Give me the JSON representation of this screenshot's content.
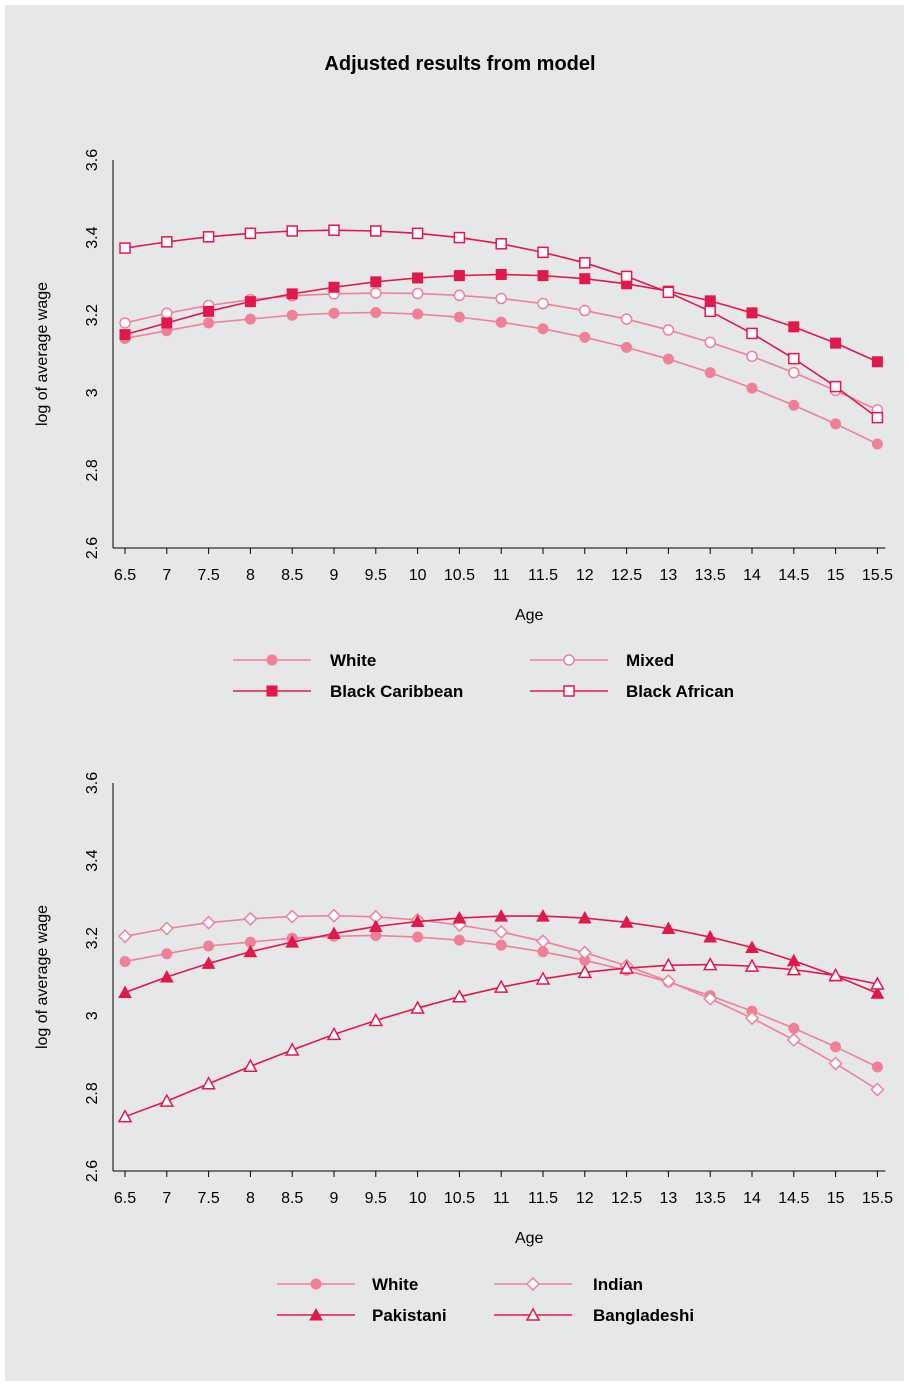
{
  "title": "Adjusted results from model",
  "colors": {
    "light": "#f08098",
    "dark": "#e3174b",
    "background": "#e6e7e8"
  },
  "chart_data": [
    {
      "type": "line",
      "xlabel": "Age",
      "ylabel": "log of average wage",
      "x": [
        6.5,
        7,
        7.5,
        8,
        8.5,
        9,
        9.5,
        10,
        10.5,
        11,
        11.5,
        12,
        12.5,
        13,
        13.5,
        14,
        14.5,
        15,
        15.5
      ],
      "x_tick_labels": [
        "6.5",
        "7",
        "7.5",
        "8",
        "8.5",
        "9",
        "9.5",
        "10",
        "10.5",
        "11",
        "11.5",
        "12",
        "12.5",
        "13",
        "13.5",
        "14",
        "14.5",
        "15",
        "15.5"
      ],
      "ylim": [
        2.6,
        3.6
      ],
      "y_ticks": [
        2.6,
        2.8,
        3,
        3.2,
        3.4,
        3.6
      ],
      "y_tick_labels": [
        "2.6",
        "2.8",
        "3",
        "3.2",
        "3.4",
        "3.6"
      ],
      "legend_position": "bottom",
      "series": [
        {
          "name": "White",
          "color": "light",
          "marker": "circle-filled",
          "values": [
            3.14,
            3.16,
            3.18,
            3.19,
            3.2,
            3.205,
            3.207,
            3.203,
            3.195,
            3.182,
            3.165,
            3.143,
            3.117,
            3.087,
            3.052,
            3.012,
            2.968,
            2.92,
            2.868
          ]
        },
        {
          "name": "Mixed",
          "color": "light",
          "marker": "circle-open",
          "values": [
            3.18,
            3.205,
            3.225,
            3.24,
            3.25,
            3.255,
            3.257,
            3.256,
            3.251,
            3.243,
            3.23,
            3.212,
            3.19,
            3.162,
            3.13,
            3.094,
            3.052,
            3.006,
            2.956
          ]
        },
        {
          "name": "Black Caribbean",
          "color": "dark",
          "marker": "square-filled",
          "values": [
            3.15,
            3.18,
            3.21,
            3.235,
            3.255,
            3.272,
            3.286,
            3.296,
            3.302,
            3.305,
            3.302,
            3.294,
            3.281,
            3.262,
            3.237,
            3.206,
            3.17,
            3.128,
            3.08
          ]
        },
        {
          "name": "Black African",
          "color": "dark",
          "marker": "square-open",
          "values": [
            3.373,
            3.389,
            3.402,
            3.411,
            3.417,
            3.419,
            3.417,
            3.411,
            3.4,
            3.384,
            3.362,
            3.335,
            3.3,
            3.259,
            3.21,
            3.153,
            3.088,
            3.016,
            2.936
          ]
        }
      ]
    },
    {
      "type": "line",
      "xlabel": "Age",
      "ylabel": "log of average wage",
      "x": [
        6.5,
        7,
        7.5,
        8,
        8.5,
        9,
        9.5,
        10,
        10.5,
        11,
        11.5,
        12,
        12.5,
        13,
        13.5,
        14,
        14.5,
        15,
        15.5
      ],
      "x_tick_labels": [
        "6.5",
        "7",
        "7.5",
        "8",
        "8.5",
        "9",
        "9.5",
        "10",
        "10.5",
        "11",
        "11.5",
        "12",
        "12.5",
        "13",
        "13.5",
        "14",
        "14.5",
        "15",
        "15.5"
      ],
      "ylim": [
        2.6,
        3.6
      ],
      "y_ticks": [
        2.6,
        2.8,
        3,
        3.2,
        3.4,
        3.6
      ],
      "y_tick_labels": [
        "2.6",
        "2.8",
        "3",
        "3.2",
        "3.4",
        "3.6"
      ],
      "legend_position": "bottom",
      "series": [
        {
          "name": "White",
          "color": "light",
          "marker": "circle-filled",
          "values": [
            3.14,
            3.16,
            3.18,
            3.19,
            3.2,
            3.205,
            3.207,
            3.203,
            3.195,
            3.182,
            3.165,
            3.143,
            3.117,
            3.087,
            3.052,
            3.012,
            2.968,
            2.92,
            2.868
          ]
        },
        {
          "name": "Indian",
          "color": "light",
          "marker": "diamond-open",
          "values": [
            3.205,
            3.225,
            3.24,
            3.25,
            3.256,
            3.258,
            3.255,
            3.247,
            3.234,
            3.216,
            3.192,
            3.163,
            3.129,
            3.089,
            3.044,
            2.994,
            2.938,
            2.877,
            2.81
          ]
        },
        {
          "name": "Pakistani",
          "color": "dark",
          "marker": "triangle-filled",
          "values": [
            3.06,
            3.1,
            3.135,
            3.165,
            3.19,
            3.212,
            3.23,
            3.243,
            3.252,
            3.257,
            3.257,
            3.252,
            3.241,
            3.225,
            3.203,
            3.176,
            3.142,
            3.103,
            3.058
          ]
        },
        {
          "name": "Bangladeshi",
          "color": "dark",
          "marker": "triangle-open",
          "values": [
            2.74,
            2.78,
            2.825,
            2.87,
            2.912,
            2.952,
            2.988,
            3.02,
            3.049,
            3.074,
            3.095,
            3.112,
            3.123,
            3.13,
            3.132,
            3.128,
            3.119,
            3.104,
            3.082
          ]
        }
      ]
    }
  ]
}
